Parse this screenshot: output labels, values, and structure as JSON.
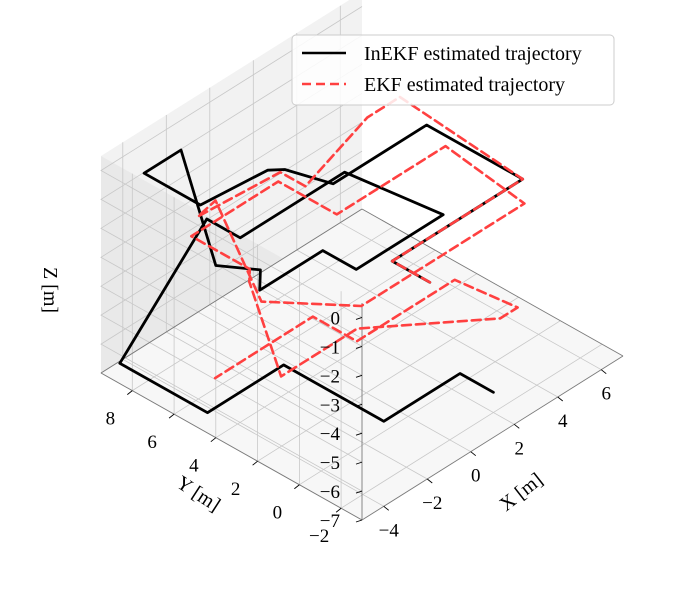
{
  "chart_data": {
    "type": "line",
    "projection": "3d",
    "xlabel": "X [m]",
    "ylabel": "Y [m]",
    "zlabel": "Z [m]",
    "xlim": [
      -5,
      7
    ],
    "ylim": [
      -3,
      9.5
    ],
    "zlim": [
      -7,
      0.5
    ],
    "xticks": [
      "−4",
      "−2",
      "0",
      "2",
      "4",
      "6"
    ],
    "yticks": [
      "−2",
      "0",
      "2",
      "4",
      "6",
      "8"
    ],
    "zticks": [
      "0",
      "−1",
      "−2",
      "−3",
      "−4",
      "−5",
      "−6",
      "−7"
    ],
    "grid": true,
    "legend_position": "top-right",
    "series": [
      {
        "name": "InEKF estimated trajectory",
        "color": "#000000",
        "style": "solid",
        "x": [
          -1.5,
          -1.5,
          4.5,
          4.5,
          0.2,
          -0.3,
          -0.7,
          -3.5,
          -3.5,
          -1.8,
          -2.6,
          -1.8,
          -2.6,
          0.3,
          0.3,
          4.3,
          3.8,
          -1.0,
          -1.0,
          -5.0,
          -5.0,
          -1.5,
          -1.5,
          2.0,
          2.0
        ],
        "y": [
          -2.6,
          -0.8,
          -0.8,
          3.8,
          3.8,
          5.6,
          6.0,
          6.3,
          9.0,
          9.0,
          6.5,
          5.2,
          4.4,
          4.4,
          2.8,
          2.8,
          7.0,
          7.0,
          8.6,
          8.6,
          4.4,
          4.4,
          -0.4,
          -0.4,
          -2.0
        ],
        "z": [
          -0.6,
          -0.6,
          -0.6,
          -0.6,
          -0.6,
          -0.6,
          -0.6,
          -0.6,
          -0.6,
          -0.6,
          -3.2,
          -3.2,
          -3.2,
          -3.2,
          -3.2,
          -3.2,
          -3.2,
          -3.2,
          -3.2,
          -6.3,
          -6.3,
          -6.3,
          -6.3,
          -6.3,
          -6.3
        ]
      },
      {
        "name": "EKF estimated trajectory",
        "color": "#ff4040",
        "style": "dashed",
        "x": [
          -1.5,
          -1.5,
          4.5,
          5.0,
          3.5,
          -0.5,
          -0.5,
          -4.0,
          -3.0,
          -3.0,
          -1.0,
          -0.5,
          6.5,
          7.0,
          2.0,
          2.0,
          -2.0,
          -2.0,
          -2.5,
          -2.0,
          1.5,
          5.0,
          5.8,
          5.5,
          1.0,
          1.0,
          -3.5
        ],
        "y": [
          -2.6,
          -0.8,
          -0.8,
          5.6,
          5.6,
          4.4,
          5.6,
          5.9,
          6.1,
          3.9,
          1.2,
          1.2,
          1.2,
          5.5,
          5.5,
          8.3,
          8.3,
          5.5,
          5.0,
          4.0,
          4.0,
          0.8,
          0.8,
          3.5,
          3.5,
          5.6,
          5.6
        ],
        "z": [
          -0.6,
          -0.6,
          -0.6,
          -0.6,
          -0.6,
          -0.6,
          -0.6,
          -0.6,
          -0.6,
          -3.2,
          -3.2,
          -3.2,
          -3.2,
          -3.2,
          -3.2,
          -3.2,
          -3.2,
          -3.2,
          -3.2,
          -6.3,
          -6.3,
          -6.3,
          -6.3,
          -6.3,
          -6.3,
          -6.3,
          -6.3
        ]
      }
    ]
  }
}
